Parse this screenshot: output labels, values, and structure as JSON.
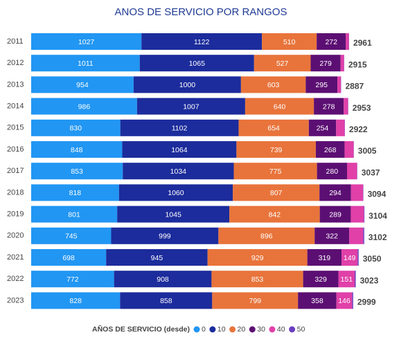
{
  "chart_data": {
    "type": "stacked_bar_horizontal",
    "title": "ANOS DE SERVICIO POR RANGOS",
    "legend_title": "AÑOS DE SERVICIO (desde)",
    "legend": "bottom",
    "categories": [
      "2011",
      "2012",
      "2013",
      "2014",
      "2015",
      "2016",
      "2017",
      "2018",
      "2019",
      "2020",
      "2021",
      "2022",
      "2023"
    ],
    "series": [
      {
        "name": "0",
        "color": "#2196f3",
        "values": [
          1027,
          1011,
          954,
          986,
          830,
          848,
          853,
          818,
          801,
          745,
          698,
          772,
          828
        ]
      },
      {
        "name": "10",
        "color": "#1c2c9c",
        "values": [
          1122,
          1065,
          1000,
          1007,
          1102,
          1064,
          1034,
          1060,
          1045,
          999,
          945,
          908,
          858
        ]
      },
      {
        "name": "20",
        "color": "#e8743b",
        "values": [
          510,
          527,
          603,
          640,
          654,
          739,
          775,
          807,
          842,
          896,
          929,
          853,
          799
        ]
      },
      {
        "name": "30",
        "color": "#5c0f73",
        "values": [
          272,
          279,
          295,
          278,
          254,
          268,
          280,
          294,
          289,
          322,
          319,
          329,
          358
        ]
      },
      {
        "name": "40",
        "color": "#e040a8",
        "values": [
          28,
          31,
          33,
          40,
          80,
          84,
          93,
          112,
          122,
          130,
          149,
          151,
          146
        ],
        "value_labels": [
          null,
          null,
          null,
          null,
          null,
          null,
          null,
          null,
          null,
          null,
          "149",
          "151",
          "146"
        ]
      },
      {
        "name": "50",
        "color": "#6b3fbf",
        "values": [
          2,
          2,
          2,
          2,
          2,
          2,
          2,
          3,
          5,
          10,
          10,
          10,
          10
        ],
        "value_labels": [
          null,
          null,
          null,
          null,
          null,
          null,
          null,
          null,
          null,
          null,
          null,
          null,
          null
        ]
      }
    ],
    "totals": [
      2961,
      2915,
      2887,
      2953,
      2922,
      3005,
      3037,
      3094,
      3104,
      3102,
      3050,
      3023,
      2999
    ]
  }
}
